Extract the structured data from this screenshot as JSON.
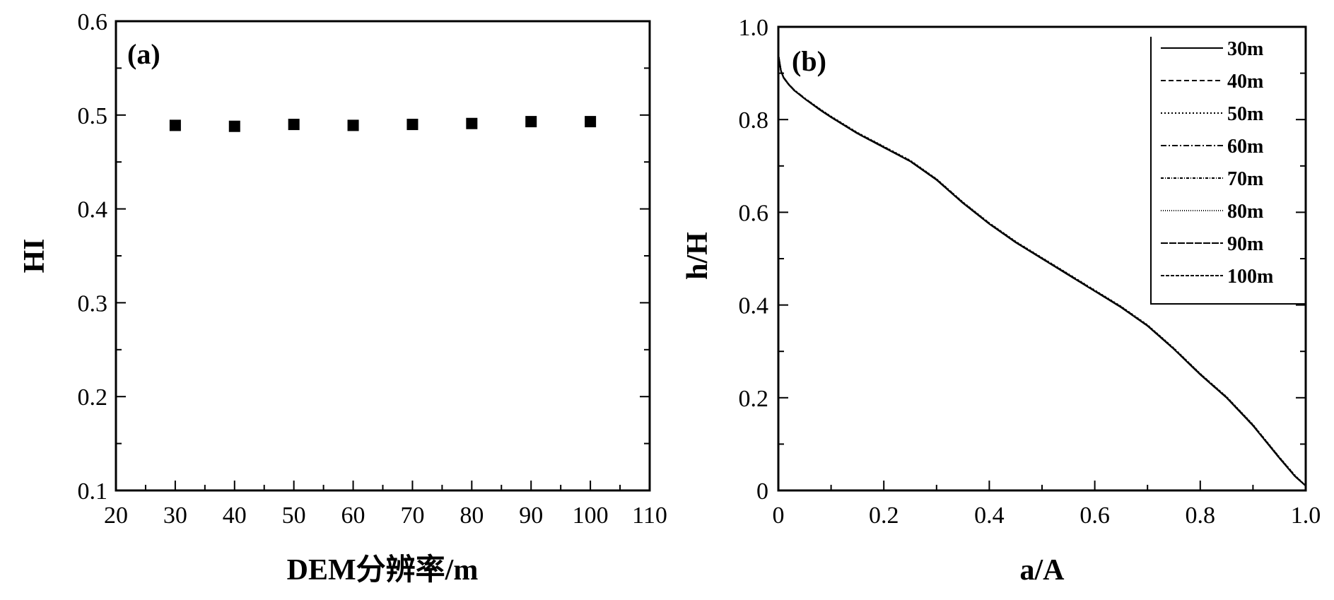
{
  "chart_data": [
    {
      "type": "scatter",
      "panel_label": "(a)",
      "xlabel": "DEM分辨率/m",
      "ylabel": "HI",
      "xlim": [
        20,
        110
      ],
      "ylim": [
        0.1,
        0.6
      ],
      "xticks": [
        "20",
        "30",
        "40",
        "50",
        "60",
        "70",
        "80",
        "90",
        "100",
        "110"
      ],
      "yticks": [
        "0.1",
        "0.2",
        "0.3",
        "0.4",
        "0.5",
        "0.6"
      ],
      "grid": false,
      "x": [
        30,
        40,
        50,
        60,
        70,
        80,
        90,
        100
      ],
      "y": [
        0.489,
        0.488,
        0.49,
        0.489,
        0.49,
        0.491,
        0.493,
        0.493
      ],
      "marker": "square"
    },
    {
      "type": "line",
      "panel_label": "(b)",
      "xlabel": "a/A",
      "ylabel": "h/H",
      "xlim": [
        0,
        1.0
      ],
      "ylim": [
        0,
        1.0
      ],
      "xticks": [
        "0",
        "0.2",
        "0.4",
        "0.6",
        "0.8",
        "1.0"
      ],
      "yticks": [
        "0",
        "0.2",
        "0.4",
        "0.6",
        "0.8",
        "1.0"
      ],
      "grid": false,
      "legend_position": "top-right",
      "x": [
        0,
        0.005,
        0.01,
        0.02,
        0.03,
        0.05,
        0.08,
        0.1,
        0.15,
        0.2,
        0.25,
        0.3,
        0.35,
        0.4,
        0.45,
        0.5,
        0.55,
        0.6,
        0.65,
        0.7,
        0.75,
        0.8,
        0.85,
        0.9,
        0.95,
        0.98,
        1.0
      ],
      "series": [
        {
          "name": "30m",
          "dash": "",
          "y": [
            0.94,
            0.905,
            0.89,
            0.875,
            0.863,
            0.845,
            0.82,
            0.805,
            0.77,
            0.74,
            0.71,
            0.67,
            0.62,
            0.575,
            0.535,
            0.5,
            0.465,
            0.43,
            0.395,
            0.355,
            0.305,
            0.25,
            0.2,
            0.14,
            0.07,
            0.03,
            0.01
          ]
        },
        {
          "name": "40m",
          "dash": "7 4",
          "y": [
            0.94,
            0.905,
            0.89,
            0.875,
            0.863,
            0.845,
            0.821,
            0.806,
            0.771,
            0.741,
            0.711,
            0.671,
            0.621,
            0.576,
            0.536,
            0.501,
            0.466,
            0.431,
            0.396,
            0.356,
            0.306,
            0.251,
            0.201,
            0.141,
            0.071,
            0.031,
            0.01
          ]
        },
        {
          "name": "50m",
          "dash": "2 3",
          "y": [
            0.94,
            0.906,
            0.891,
            0.876,
            0.864,
            0.846,
            0.822,
            0.807,
            0.772,
            0.742,
            0.712,
            0.672,
            0.622,
            0.577,
            0.537,
            0.502,
            0.467,
            0.432,
            0.397,
            0.357,
            0.307,
            0.252,
            0.202,
            0.142,
            0.072,
            0.032,
            0.01
          ]
        },
        {
          "name": "60m",
          "dash": "8 3 2 3",
          "y": [
            0.94,
            0.906,
            0.891,
            0.876,
            0.864,
            0.846,
            0.821,
            0.806,
            0.771,
            0.741,
            0.711,
            0.671,
            0.621,
            0.576,
            0.536,
            0.501,
            0.466,
            0.431,
            0.396,
            0.356,
            0.306,
            0.251,
            0.201,
            0.141,
            0.071,
            0.031,
            0.01
          ]
        },
        {
          "name": "70m",
          "dash": "4 2 1 2",
          "y": [
            0.94,
            0.905,
            0.89,
            0.875,
            0.863,
            0.845,
            0.82,
            0.805,
            0.77,
            0.74,
            0.71,
            0.67,
            0.62,
            0.575,
            0.535,
            0.5,
            0.465,
            0.43,
            0.395,
            0.355,
            0.305,
            0.25,
            0.2,
            0.14,
            0.07,
            0.03,
            0.01
          ]
        },
        {
          "name": "80m",
          "dash": "1 2",
          "y": [
            0.94,
            0.905,
            0.89,
            0.875,
            0.863,
            0.845,
            0.82,
            0.805,
            0.77,
            0.74,
            0.71,
            0.67,
            0.62,
            0.575,
            0.535,
            0.5,
            0.465,
            0.43,
            0.395,
            0.355,
            0.305,
            0.25,
            0.2,
            0.14,
            0.07,
            0.03,
            0.01
          ]
        },
        {
          "name": "90m",
          "dash": "10 2",
          "y": [
            0.94,
            0.905,
            0.89,
            0.875,
            0.863,
            0.845,
            0.82,
            0.805,
            0.77,
            0.74,
            0.71,
            0.67,
            0.62,
            0.575,
            0.535,
            0.5,
            0.465,
            0.43,
            0.395,
            0.355,
            0.305,
            0.25,
            0.2,
            0.14,
            0.07,
            0.03,
            0.01
          ]
        },
        {
          "name": "100m",
          "dash": "5 2 5 2",
          "y": [
            0.94,
            0.905,
            0.89,
            0.875,
            0.863,
            0.845,
            0.82,
            0.805,
            0.77,
            0.74,
            0.71,
            0.67,
            0.62,
            0.575,
            0.535,
            0.5,
            0.465,
            0.43,
            0.395,
            0.355,
            0.305,
            0.25,
            0.2,
            0.14,
            0.07,
            0.03,
            0.01
          ]
        }
      ]
    }
  ]
}
